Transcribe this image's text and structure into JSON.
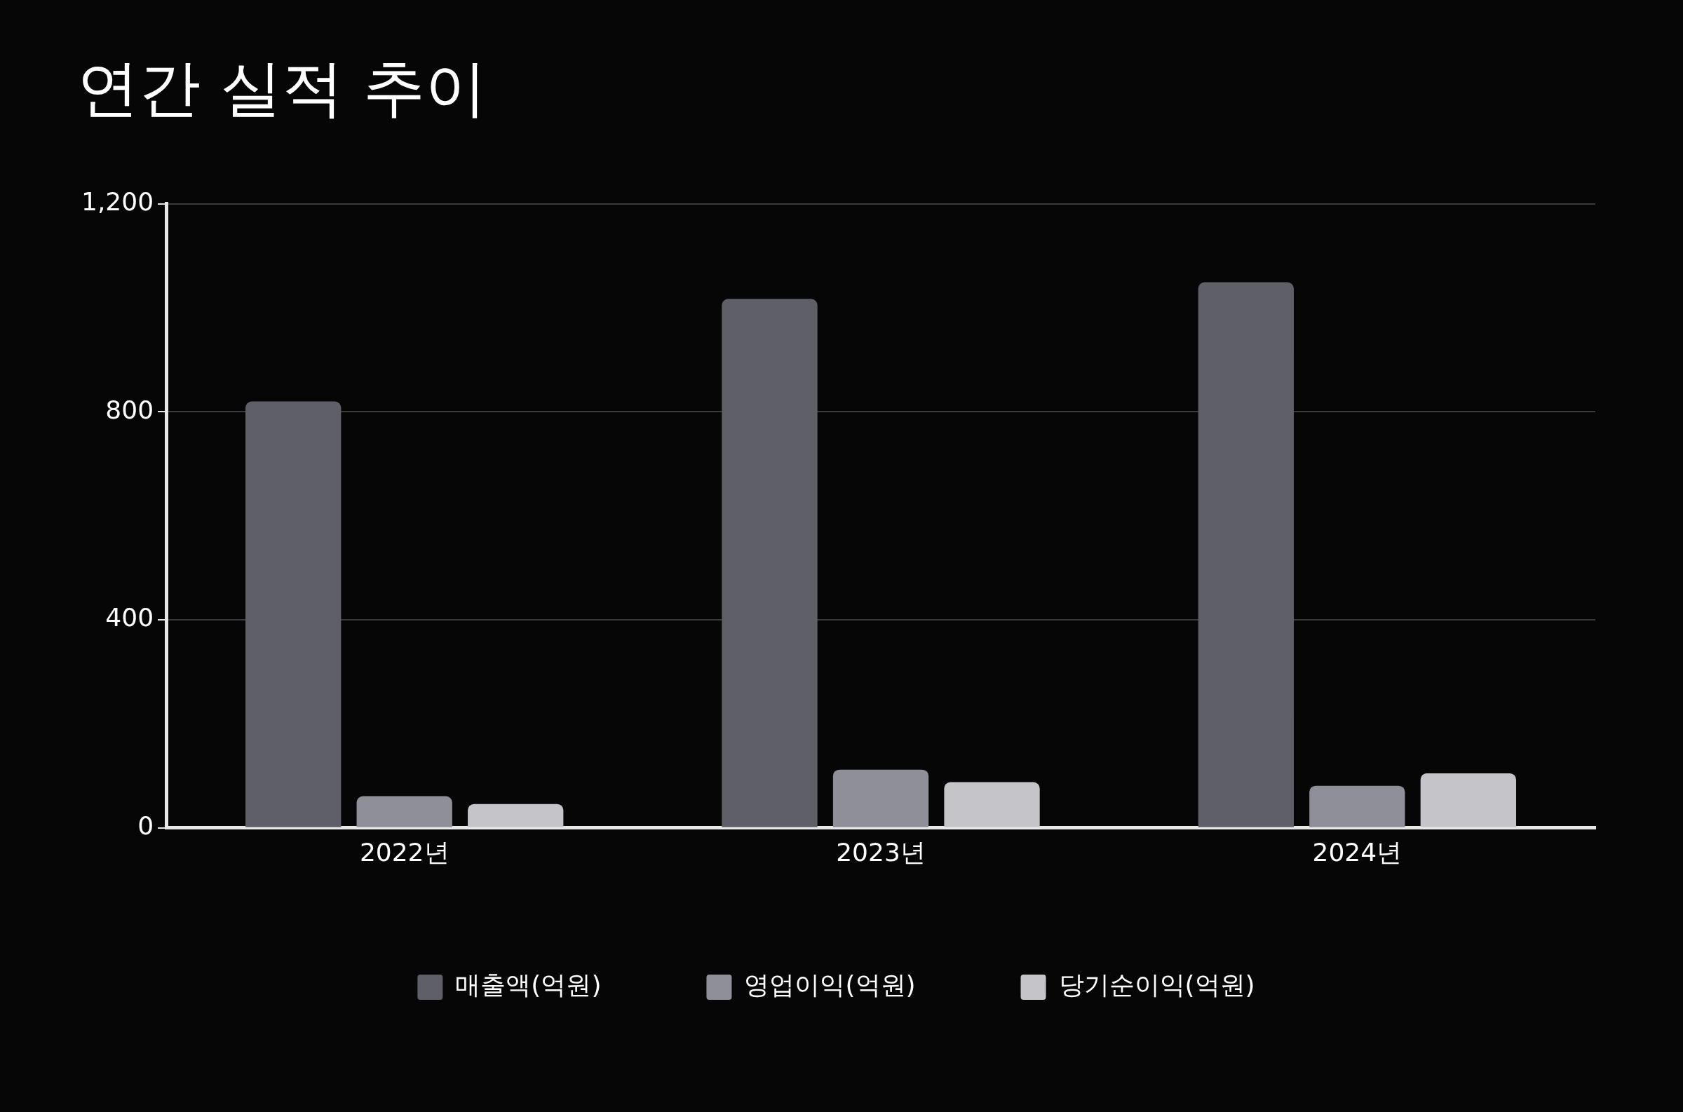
{
  "chart_data": {
    "type": "bar",
    "title": "연간 실적 추이",
    "categories": [
      "2022년",
      "2023년",
      "2024년"
    ],
    "series": [
      {
        "name": "매출액(억원)",
        "color": "#5f5f67",
        "values": [
          820,
          1017,
          1049
        ]
      },
      {
        "name": "영업이익(억원)",
        "color": "#8f8f97",
        "values": [
          61,
          112,
          81
        ]
      },
      {
        "name": "당기순이익(억원)",
        "color": "#c5c5c9",
        "values": [
          46,
          88,
          105
        ]
      }
    ],
    "ylim": [
      0,
      1200
    ],
    "yticks": [
      0,
      400,
      800,
      {
        "value": 1200,
        "label": "1,200"
      }
    ],
    "grid": "y",
    "legend": "bottom"
  }
}
